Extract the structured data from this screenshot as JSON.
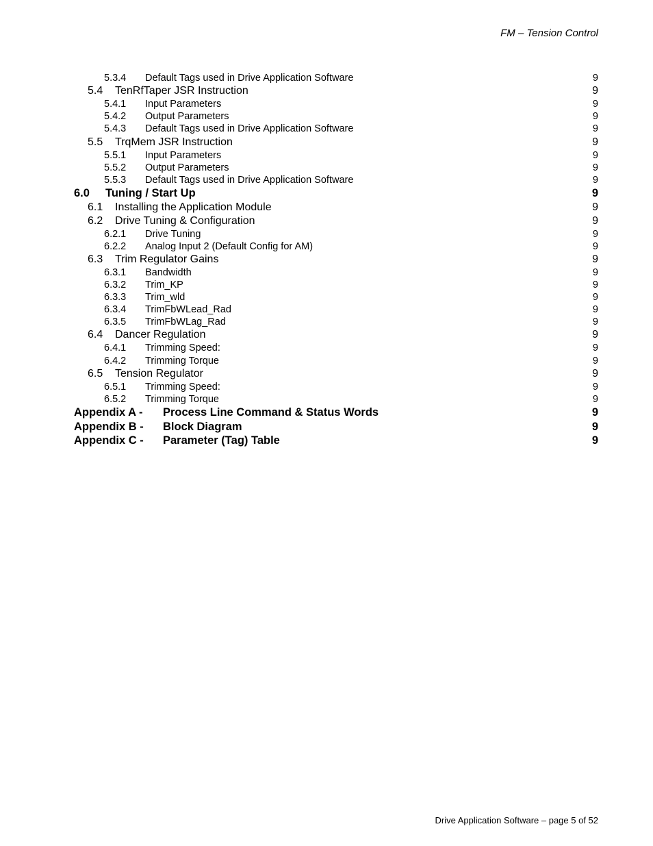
{
  "header": "FM – Tension Control",
  "footer": "Drive Application Software – page 5 of 52",
  "entries": [
    {
      "level": 3,
      "num": "5.3.4",
      "title": "Default Tags used in Drive Application Software",
      "page": "9"
    },
    {
      "level": 2,
      "num": "5.4",
      "title": "TenRfTaper JSR Instruction",
      "page": "9"
    },
    {
      "level": 3,
      "num": "5.4.1",
      "title": "Input Parameters",
      "page": "9"
    },
    {
      "level": 3,
      "num": "5.4.2",
      "title": "Output Parameters",
      "page": "9"
    },
    {
      "level": 3,
      "num": "5.4.3",
      "title": "Default Tags used in Drive Application Software",
      "page": "9"
    },
    {
      "level": 2,
      "num": "5.5",
      "title": "TrqMem JSR Instruction",
      "page": "9"
    },
    {
      "level": 3,
      "num": "5.5.1",
      "title": "Input Parameters",
      "page": "9"
    },
    {
      "level": 3,
      "num": "5.5.2",
      "title": "Output Parameters",
      "page": "9"
    },
    {
      "level": 3,
      "num": "5.5.3",
      "title": "Default Tags used in Drive Application Software",
      "page": "9"
    },
    {
      "level": 1,
      "num": "6.0",
      "title": "Tuning / Start Up",
      "page": "9"
    },
    {
      "level": 2,
      "num": "6.1",
      "title": "Installing the Application Module",
      "page": "9"
    },
    {
      "level": 2,
      "num": "6.2",
      "title": "Drive Tuning & Configuration",
      "page": "9"
    },
    {
      "level": 3,
      "num": "6.2.1",
      "title": "Drive Tuning",
      "page": "9"
    },
    {
      "level": 3,
      "num": "6.2.2",
      "title": "Analog Input 2 (Default Config for AM)",
      "page": "9"
    },
    {
      "level": 2,
      "num": "6.3",
      "title": "Trim Regulator Gains",
      "page": "9"
    },
    {
      "level": 3,
      "num": "6.3.1",
      "title": "Bandwidth",
      "page": "9"
    },
    {
      "level": 3,
      "num": "6.3.2",
      "title": "Trim_KP",
      "page": "9"
    },
    {
      "level": 3,
      "num": "6.3.3",
      "title": "Trim_wld",
      "page": "9"
    },
    {
      "level": 3,
      "num": "6.3.4",
      "title": "TrimFbWLead_Rad",
      "page": "9"
    },
    {
      "level": 3,
      "num": "6.3.5",
      "title": "TrimFbWLag_Rad",
      "page": "9"
    },
    {
      "level": 2,
      "num": "6.4",
      "title": "Dancer Regulation",
      "page": "9"
    },
    {
      "level": 3,
      "num": "6.4.1",
      "title": "Trimming Speed:",
      "page": "9"
    },
    {
      "level": 3,
      "num": "6.4.2",
      "title": "Trimming Torque",
      "page": "9"
    },
    {
      "level": 2,
      "num": "6.5",
      "title": "Tension Regulator",
      "page": "9"
    },
    {
      "level": 3,
      "num": "6.5.1",
      "title": "Trimming Speed:",
      "page": "9"
    },
    {
      "level": 3,
      "num": "6.5.2",
      "title": "Trimming Torque",
      "page": "9"
    },
    {
      "level": 1,
      "num": "Appendix A -",
      "title": "Process Line Command & Status Words",
      "page": "9",
      "appendix": true
    },
    {
      "level": 1,
      "num": "Appendix B -",
      "title": "Block Diagram",
      "page": "9",
      "appendix": true
    },
    {
      "level": 1,
      "num": "Appendix C -",
      "title": "Parameter (Tag) Table",
      "page": "9",
      "appendix": true
    }
  ]
}
